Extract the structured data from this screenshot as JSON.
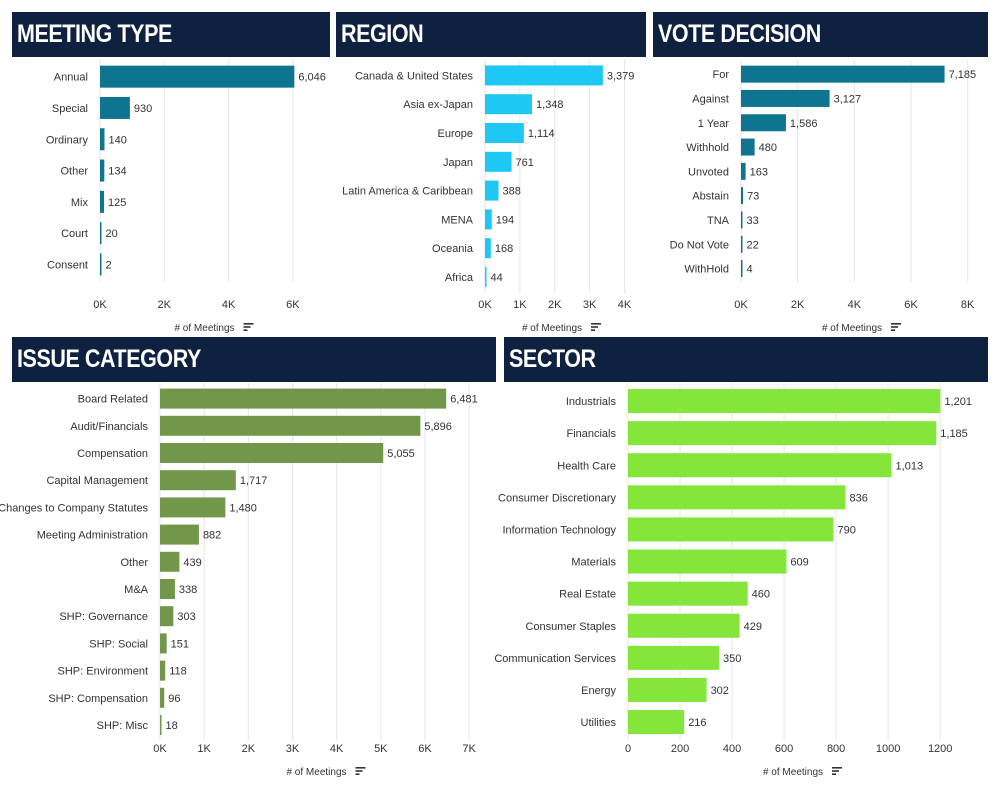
{
  "chart_data": [
    {
      "type": "bar",
      "title": "MEETING TYPE",
      "categories": [
        "Annual",
        "Special",
        "Ordinary",
        "Other",
        "Mix",
        "Court",
        "Consent"
      ],
      "values": [
        6046,
        930,
        140,
        134,
        125,
        20,
        2
      ],
      "value_labels": [
        "6,046",
        "930",
        "140",
        "134",
        "125",
        "20",
        "2"
      ],
      "xlabel": "# of Meetings",
      "xticks": [
        0,
        2000,
        4000,
        6000
      ],
      "xtick_labels": [
        "0K",
        "2K",
        "4K",
        "6K"
      ],
      "xlim": [
        0,
        7000
      ],
      "color": "#0e7490"
    },
    {
      "type": "bar",
      "title": "REGION",
      "categories": [
        "Canada & United States",
        "Asia ex-Japan",
        "Europe",
        "Japan",
        "Latin America & Caribbean",
        "MENA",
        "Oceania",
        "Africa"
      ],
      "values": [
        3379,
        1348,
        1114,
        761,
        388,
        194,
        168,
        44
      ],
      "value_labels": [
        "3,379",
        "1,348",
        "1,114",
        "761",
        "388",
        "194",
        "168",
        "44"
      ],
      "xlabel": "# of Meetings",
      "xticks": [
        0,
        1000,
        2000,
        3000,
        4000
      ],
      "xtick_labels": [
        "0K",
        "1K",
        "2K",
        "3K",
        "4K"
      ],
      "xlim": [
        0,
        4300
      ],
      "color": "#1ec8f5"
    },
    {
      "type": "bar",
      "title": "VOTE DECISION",
      "categories": [
        "For",
        "Against",
        "1 Year",
        "Withhold",
        "Unvoted",
        "Abstain",
        "TNA",
        "Do Not Vote",
        "WithHold"
      ],
      "values": [
        7185,
        3127,
        1586,
        480,
        163,
        73,
        33,
        22,
        4
      ],
      "value_labels": [
        "7,185",
        "3,127",
        "1,586",
        "480",
        "163",
        "73",
        "33",
        "22",
        "4"
      ],
      "xlabel": "# of Meetings",
      "xticks": [
        0,
        2000,
        4000,
        6000,
        8000
      ],
      "xtick_labels": [
        "0K",
        "2K",
        "4K",
        "6K",
        "8K"
      ],
      "xlim": [
        0,
        8400
      ],
      "color": "#0e7490"
    },
    {
      "type": "bar",
      "title": "ISSUE CATEGORY",
      "categories": [
        "Board Related",
        "Audit/Financials",
        "Compensation",
        "Capital Management",
        "Changes to Company Statutes",
        "Meeting Administration",
        "Other",
        "M&A",
        "SHP: Governance",
        "SHP: Social",
        "SHP: Environment",
        "SHP: Compensation",
        "SHP: Misc"
      ],
      "values": [
        6481,
        5896,
        5055,
        1717,
        1480,
        882,
        439,
        338,
        303,
        151,
        118,
        96,
        18
      ],
      "value_labels": [
        "6,481",
        "5,896",
        "5,055",
        "1,717",
        "1,480",
        "882",
        "439",
        "338",
        "303",
        "151",
        "118",
        "96",
        "18"
      ],
      "xlabel": "# of Meetings",
      "xticks": [
        0,
        1000,
        2000,
        3000,
        4000,
        5000,
        6000,
        7000
      ],
      "xtick_labels": [
        "0K",
        "1K",
        "2K",
        "3K",
        "4K",
        "5K",
        "6K",
        "7K"
      ],
      "xlim": [
        0,
        7450
      ],
      "color": "#72974a"
    },
    {
      "type": "bar",
      "title": "SECTOR",
      "categories": [
        "Industrials",
        "Financials",
        "Health Care",
        "Consumer Discretionary",
        "Information Technology",
        "Materials",
        "Real Estate",
        "Consumer Staples",
        "Communication Services",
        "Energy",
        "Utilities"
      ],
      "values": [
        1201,
        1185,
        1013,
        836,
        790,
        609,
        460,
        429,
        350,
        302,
        216
      ],
      "value_labels": [
        "1,201",
        "1,185",
        "1,013",
        "836",
        "790",
        "609",
        "460",
        "429",
        "350",
        "302",
        "216"
      ],
      "xlabel": "# of Meetings",
      "xticks": [
        0,
        200,
        400,
        600,
        800,
        1000,
        1200
      ],
      "xtick_labels": [
        "0",
        "200",
        "400",
        "600",
        "800",
        "1000",
        "1200"
      ],
      "xlim": [
        0,
        1330
      ],
      "color": "#84e53a"
    }
  ]
}
